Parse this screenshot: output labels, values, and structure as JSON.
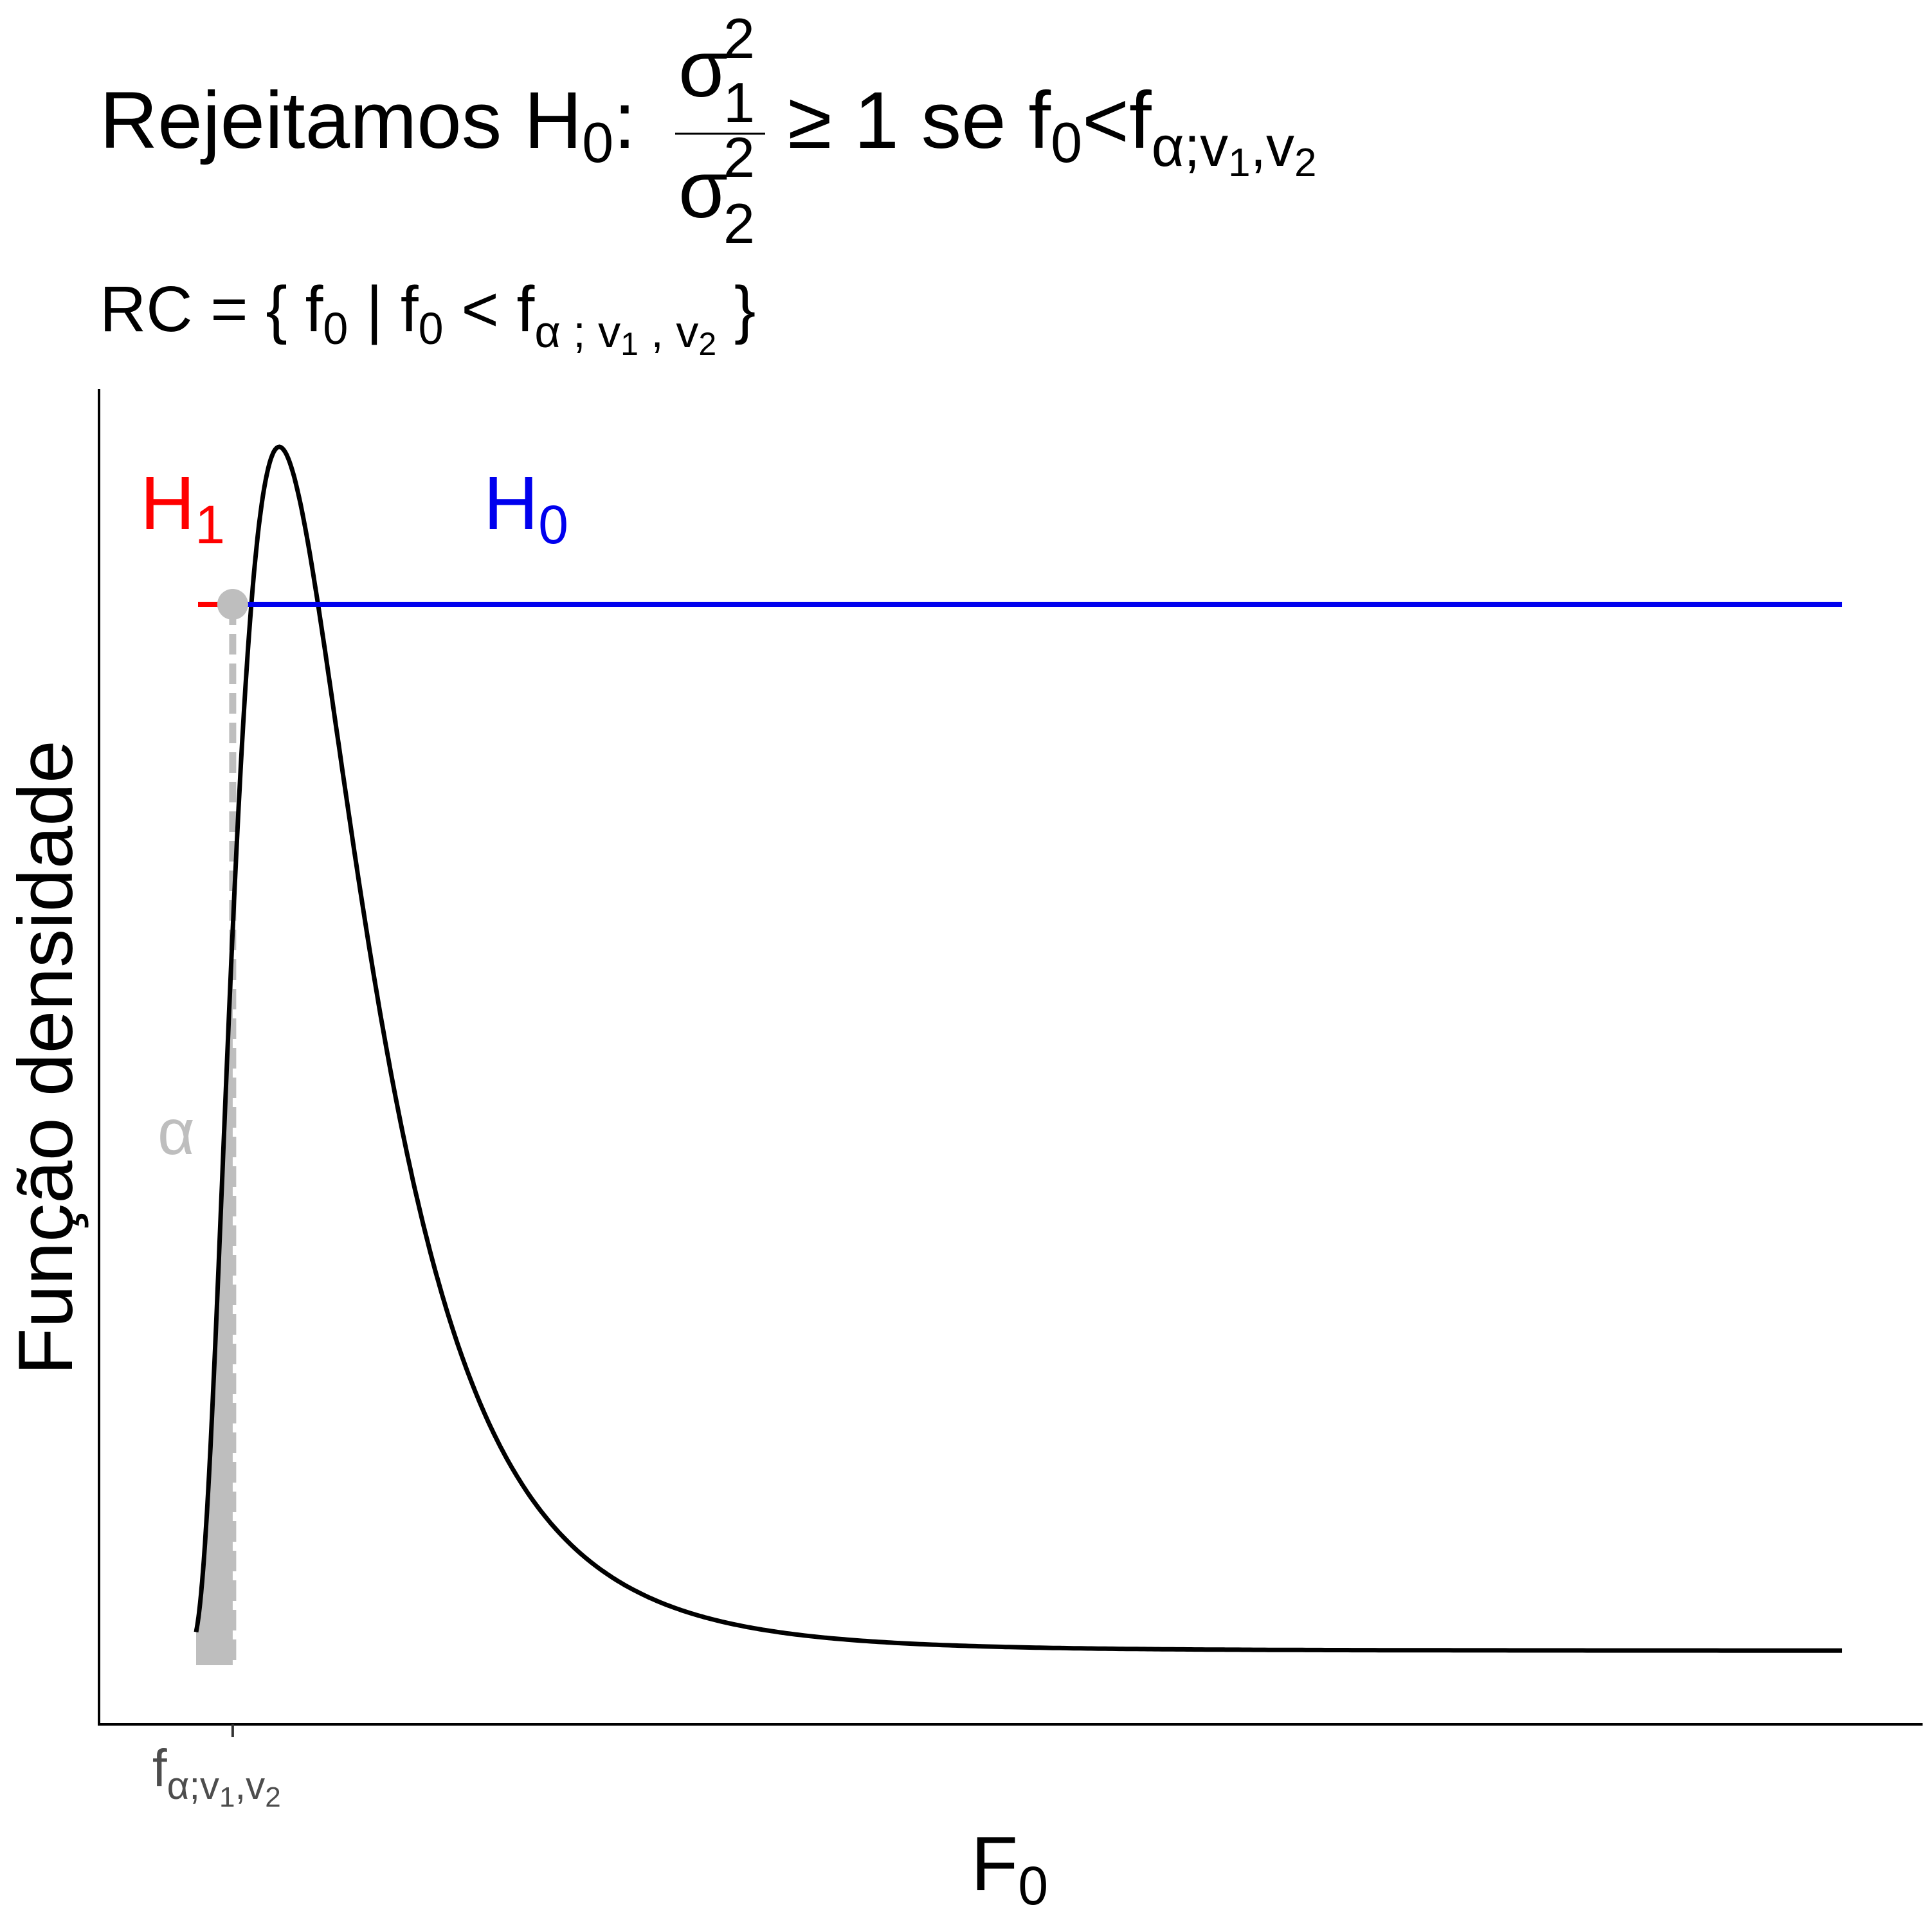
{
  "title": {
    "lead": "Rejeitamos H",
    "lead_sub": "0",
    "colon": ":",
    "num_sigma": "σ",
    "num_sup": "2",
    "num_sub": "1",
    "den_sigma": "σ",
    "den_sup": "2",
    "den_sub": "2",
    "rest_a": "≥ 1 se f",
    "rest_sub": "0",
    "rest_lt": "<f",
    "crit_alpha": "α;v",
    "crit_sub1": "1",
    "crit_comma": ",v",
    "crit_sub2": "2"
  },
  "subtitle": {
    "rc_open": "RC = {  f",
    "rc_sub0": "0",
    "rc_bar": "  |   f",
    "rc_sub0b": "0",
    "rc_lt": " < f",
    "rc_alpha": "α ; v",
    "rc_sub1": "1",
    "rc_comma": " , v",
    "rc_sub2": "2",
    "rc_close": " }"
  },
  "annotations": {
    "h1_label": "H",
    "h1_sub": "1",
    "h0_label": "H",
    "h0_sub": "0",
    "alpha_label": "α"
  },
  "axes": {
    "ylabel": "Função densidade",
    "xlabel_main": "F",
    "xlabel_sub": "0",
    "xtick_f": "f",
    "xtick_alpha": "α;v",
    "xtick_sub1": "1",
    "xtick_comma": ",v",
    "xtick_sub2": "2"
  },
  "chart_data": {
    "type": "area",
    "distribution": "F density",
    "x_range": [
      0.05,
      5.0
    ],
    "critical_value_x": 0.16,
    "shaded_region": [
      0.05,
      0.16
    ],
    "density_peak_x": 0.3,
    "h1_region_x": [
      0.0,
      0.16
    ],
    "h0_region_x": [
      0.16,
      5.0
    ],
    "grid": false,
    "legend": "none",
    "colors": {
      "curve": "#000000",
      "h1": "#ff0000",
      "h0": "#0000ee",
      "alpha_fill": "#bebebe",
      "alpha_text": "#bebebe",
      "critical_point": "#bebebe",
      "tick_text": "#4d4d4d"
    }
  }
}
